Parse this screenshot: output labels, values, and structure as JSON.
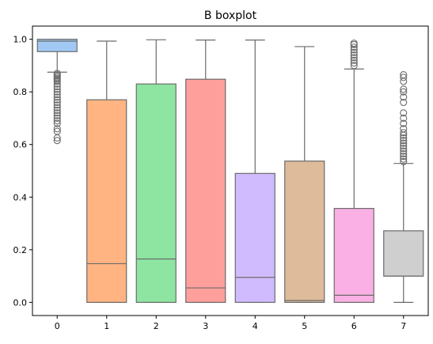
{
  "chart_data": {
    "type": "boxplot",
    "title": "B boxplot",
    "xlabel": "",
    "ylabel": "",
    "categories": [
      "0",
      "1",
      "2",
      "3",
      "4",
      "5",
      "6",
      "7"
    ],
    "ylim": [
      -0.05,
      1.05
    ],
    "yticks": [
      0.0,
      0.2,
      0.4,
      0.6,
      0.8,
      1.0
    ],
    "ytick_labels": [
      "0.0",
      "0.2",
      "0.4",
      "0.6",
      "0.8",
      "1.0"
    ],
    "grid": false,
    "boxes": [
      {
        "category": "0",
        "color": "#a1c9f4",
        "whisker_low": 0.875,
        "q1": 0.953,
        "median": 0.993,
        "q3": 1.0,
        "whisker_high": 1.0,
        "outliers": [
          0.87,
          0.865,
          0.86,
          0.855,
          0.85,
          0.845,
          0.84,
          0.83,
          0.82,
          0.81,
          0.8,
          0.79,
          0.78,
          0.77,
          0.76,
          0.75,
          0.74,
          0.73,
          0.72,
          0.71,
          0.7,
          0.69,
          0.68,
          0.66,
          0.65,
          0.625,
          0.615
        ]
      },
      {
        "category": "1",
        "color": "#ffb482",
        "whisker_low": 0.0,
        "q1": 0.0,
        "median": 0.147,
        "q3": 0.77,
        "whisker_high": 0.993,
        "outliers": []
      },
      {
        "category": "2",
        "color": "#8de5a1",
        "whisker_low": 0.0,
        "q1": 0.0,
        "median": 0.165,
        "q3": 0.83,
        "whisker_high": 0.998,
        "outliers": []
      },
      {
        "category": "3",
        "color": "#ff9f9b",
        "whisker_low": 0.0,
        "q1": 0.0,
        "median": 0.055,
        "q3": 0.848,
        "whisker_high": 0.997,
        "outliers": []
      },
      {
        "category": "4",
        "color": "#d0bbff",
        "whisker_low": 0.0,
        "q1": 0.0,
        "median": 0.095,
        "q3": 0.49,
        "whisker_high": 0.997,
        "outliers": []
      },
      {
        "category": "5",
        "color": "#debb9b",
        "whisker_low": 0.0,
        "q1": 0.0,
        "median": 0.007,
        "q3": 0.537,
        "whisker_high": 0.972,
        "outliers": []
      },
      {
        "category": "6",
        "color": "#fab0e4",
        "whisker_low": 0.0,
        "q1": 0.0,
        "median": 0.027,
        "q3": 0.357,
        "whisker_high": 0.887,
        "outliers": [
          0.9,
          0.91,
          0.92,
          0.93,
          0.94,
          0.95,
          0.96,
          0.97,
          0.98,
          0.985
        ]
      },
      {
        "category": "7",
        "color": "#cfcfcf",
        "whisker_low": 0.0,
        "q1": 0.1,
        "median": 0.1,
        "q3": 0.272,
        "whisker_high": 0.528,
        "outliers": [
          0.535,
          0.545,
          0.555,
          0.565,
          0.575,
          0.585,
          0.595,
          0.605,
          0.615,
          0.625,
          0.635,
          0.645,
          0.66,
          0.68,
          0.7,
          0.72,
          0.76,
          0.78,
          0.8,
          0.81,
          0.84,
          0.855,
          0.865
        ]
      }
    ]
  }
}
